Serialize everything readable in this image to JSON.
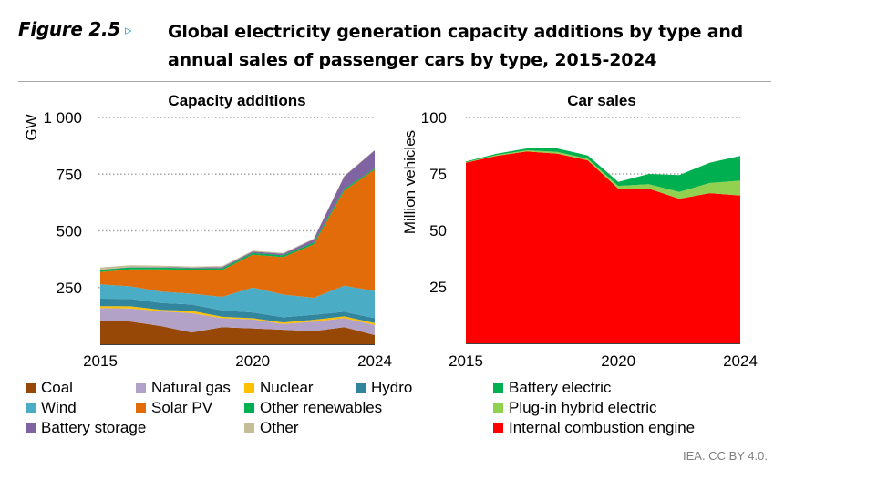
{
  "header": {
    "figure_label": "Figure 2.5",
    "arrow_icon": "▹",
    "title": "Global electricity generation capacity additions by type and annual sales of passenger cars by type, 2015-2024"
  },
  "credit": "IEA. CC BY 4.0.",
  "chart_data": [
    {
      "type": "area",
      "stacked": true,
      "title": "Capacity additions",
      "xlabel": "",
      "ylabel": "GW",
      "x": [
        2015,
        2016,
        2017,
        2018,
        2019,
        2020,
        2021,
        2022,
        2023,
        2024
      ],
      "xticks": [
        "2015",
        "2020",
        "2024"
      ],
      "yticks": [
        {
          "v": 250,
          "label": "250"
        },
        {
          "v": 500,
          "label": "500"
        },
        {
          "v": 750,
          "label": "750"
        },
        {
          "v": 1000,
          "label": "1 000"
        }
      ],
      "ylim": [
        0,
        1000
      ],
      "grid": "horizontal-dotted",
      "legend_position": "bottom",
      "series": [
        {
          "name": "Coal",
          "color": "#974806",
          "values": [
            105,
            100,
            80,
            52,
            75,
            70,
            64,
            58,
            75,
            40
          ]
        },
        {
          "name": "Natural gas",
          "color": "#b3a2c7",
          "values": [
            55,
            58,
            65,
            85,
            40,
            40,
            25,
            42,
            40,
            45
          ]
        },
        {
          "name": "Nuclear",
          "color": "#ffc000",
          "values": [
            8,
            9,
            7,
            10,
            6,
            5,
            7,
            8,
            8,
            8
          ]
        },
        {
          "name": "Hydro",
          "color": "#31859c",
          "values": [
            33,
            33,
            30,
            28,
            28,
            25,
            23,
            22,
            20,
            22
          ]
        },
        {
          "name": "Wind",
          "color": "#4bacc6",
          "values": [
            63,
            55,
            50,
            48,
            60,
            110,
            100,
            75,
            115,
            120
          ]
        },
        {
          "name": "Solar PV",
          "color": "#e36c0a",
          "values": [
            55,
            75,
            98,
            105,
            118,
            145,
            165,
            235,
            420,
            535
          ]
        },
        {
          "name": "Other renewables",
          "color": "#00b050",
          "values": [
            9,
            9,
            8,
            7,
            8,
            8,
            8,
            8,
            7,
            5
          ]
        },
        {
          "name": "Battery storage",
          "color": "#8064a2",
          "values": [
            1,
            1,
            2,
            3,
            5,
            6,
            7,
            15,
            55,
            80
          ]
        },
        {
          "name": "Other",
          "color": "#c4bd97",
          "values": [
            10,
            8,
            6,
            5,
            5,
            4,
            4,
            3,
            3,
            2
          ]
        }
      ],
      "legend": [
        {
          "name": "Coal",
          "color": "#974806"
        },
        {
          "name": "Natural gas",
          "color": "#b3a2c7"
        },
        {
          "name": "Nuclear",
          "color": "#ffc000"
        },
        {
          "name": "Hydro",
          "color": "#31859c"
        },
        {
          "name": "Wind",
          "color": "#4bacc6"
        },
        {
          "name": "Solar PV",
          "color": "#e36c0a"
        },
        {
          "name": "Other renewables",
          "color": "#00b050"
        },
        {
          "name": "Battery storage",
          "color": "#8064a2"
        },
        {
          "name": "Other",
          "color": "#c4bd97"
        }
      ]
    },
    {
      "type": "area",
      "stacked": true,
      "title": "Car sales",
      "xlabel": "",
      "ylabel": "Million vehicles",
      "x": [
        2015,
        2016,
        2017,
        2018,
        2019,
        2020,
        2021,
        2022,
        2023,
        2024
      ],
      "xticks": [
        "2015",
        "2020",
        "2024"
      ],
      "yticks": [
        {
          "v": 25,
          "label": "25"
        },
        {
          "v": 50,
          "label": "50"
        },
        {
          "v": 75,
          "label": "75"
        },
        {
          "v": 100,
          "label": "100"
        }
      ],
      "ylim": [
        0,
        100
      ],
      "grid": "horizontal-dotted",
      "legend_position": "bottom",
      "series": [
        {
          "name": "Internal combustion engine",
          "color": "#ff0000",
          "values": [
            80,
            83,
            85,
            84,
            81,
            68.5,
            68.5,
            64,
            66.5,
            65.5
          ]
        },
        {
          "name": "Plug-in hybrid electric",
          "color": "#92d050",
          "values": [
            0.2,
            0.4,
            0.5,
            0.8,
            0.7,
            1.2,
            2,
            3,
            4.5,
            6.5
          ]
        },
        {
          "name": "Battery electric",
          "color": "#00b050",
          "values": [
            0.3,
            0.5,
            0.8,
            1.5,
            1.5,
            1.8,
            4.5,
            7.5,
            9,
            11
          ]
        }
      ],
      "legend": [
        {
          "name": "Battery electric",
          "color": "#00b050"
        },
        {
          "name": "Plug-in hybrid electric",
          "color": "#92d050"
        },
        {
          "name": "Internal combustion engine",
          "color": "#ff0000"
        }
      ]
    }
  ]
}
